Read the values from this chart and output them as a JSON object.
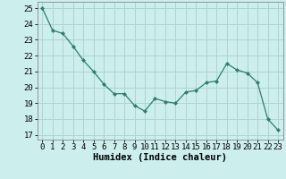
{
  "x": [
    0,
    1,
    2,
    3,
    4,
    5,
    6,
    7,
    8,
    9,
    10,
    11,
    12,
    13,
    14,
    15,
    16,
    17,
    18,
    19,
    20,
    21,
    22,
    23
  ],
  "y": [
    25.0,
    23.6,
    23.4,
    22.6,
    21.7,
    21.0,
    20.2,
    19.6,
    19.6,
    18.85,
    18.5,
    19.3,
    19.1,
    19.0,
    19.7,
    19.8,
    20.3,
    20.4,
    21.5,
    21.1,
    20.9,
    20.3,
    18.0,
    17.3
  ],
  "xlabel": "Humidex (Indice chaleur)",
  "ylabel_ticks": [
    17,
    18,
    19,
    20,
    21,
    22,
    23,
    24,
    25
  ],
  "xlim": [
    -0.5,
    23.5
  ],
  "ylim": [
    16.7,
    25.4
  ],
  "bg_color": "#cceeed",
  "grid_color": "#b0d4d0",
  "line_color": "#2e7d6e",
  "marker_color": "#2e7d6e",
  "xlabel_fontsize": 7.5,
  "tick_fontsize": 6.5
}
